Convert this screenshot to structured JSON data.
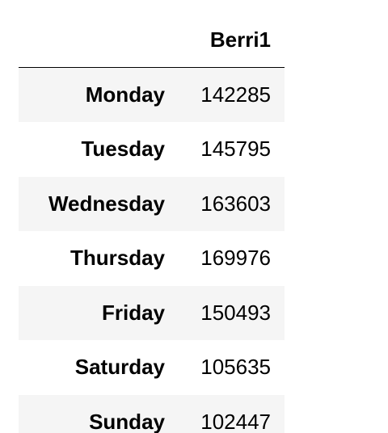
{
  "table": {
    "columns": [
      "",
      "Berri1"
    ],
    "rows": [
      {
        "index": "Monday",
        "Berri1": "142285"
      },
      {
        "index": "Tuesday",
        "Berri1": "145795"
      },
      {
        "index": "Wednesday",
        "Berri1": "163603"
      },
      {
        "index": "Thursday",
        "Berri1": "169976"
      },
      {
        "index": "Friday",
        "Berri1": "150493"
      },
      {
        "index": "Saturday",
        "Berri1": "105635"
      },
      {
        "index": "Sunday",
        "Berri1": "102447"
      }
    ]
  },
  "colors": {
    "striped_row": "#f5f5f5",
    "background": "#ffffff",
    "text": "#000000"
  }
}
